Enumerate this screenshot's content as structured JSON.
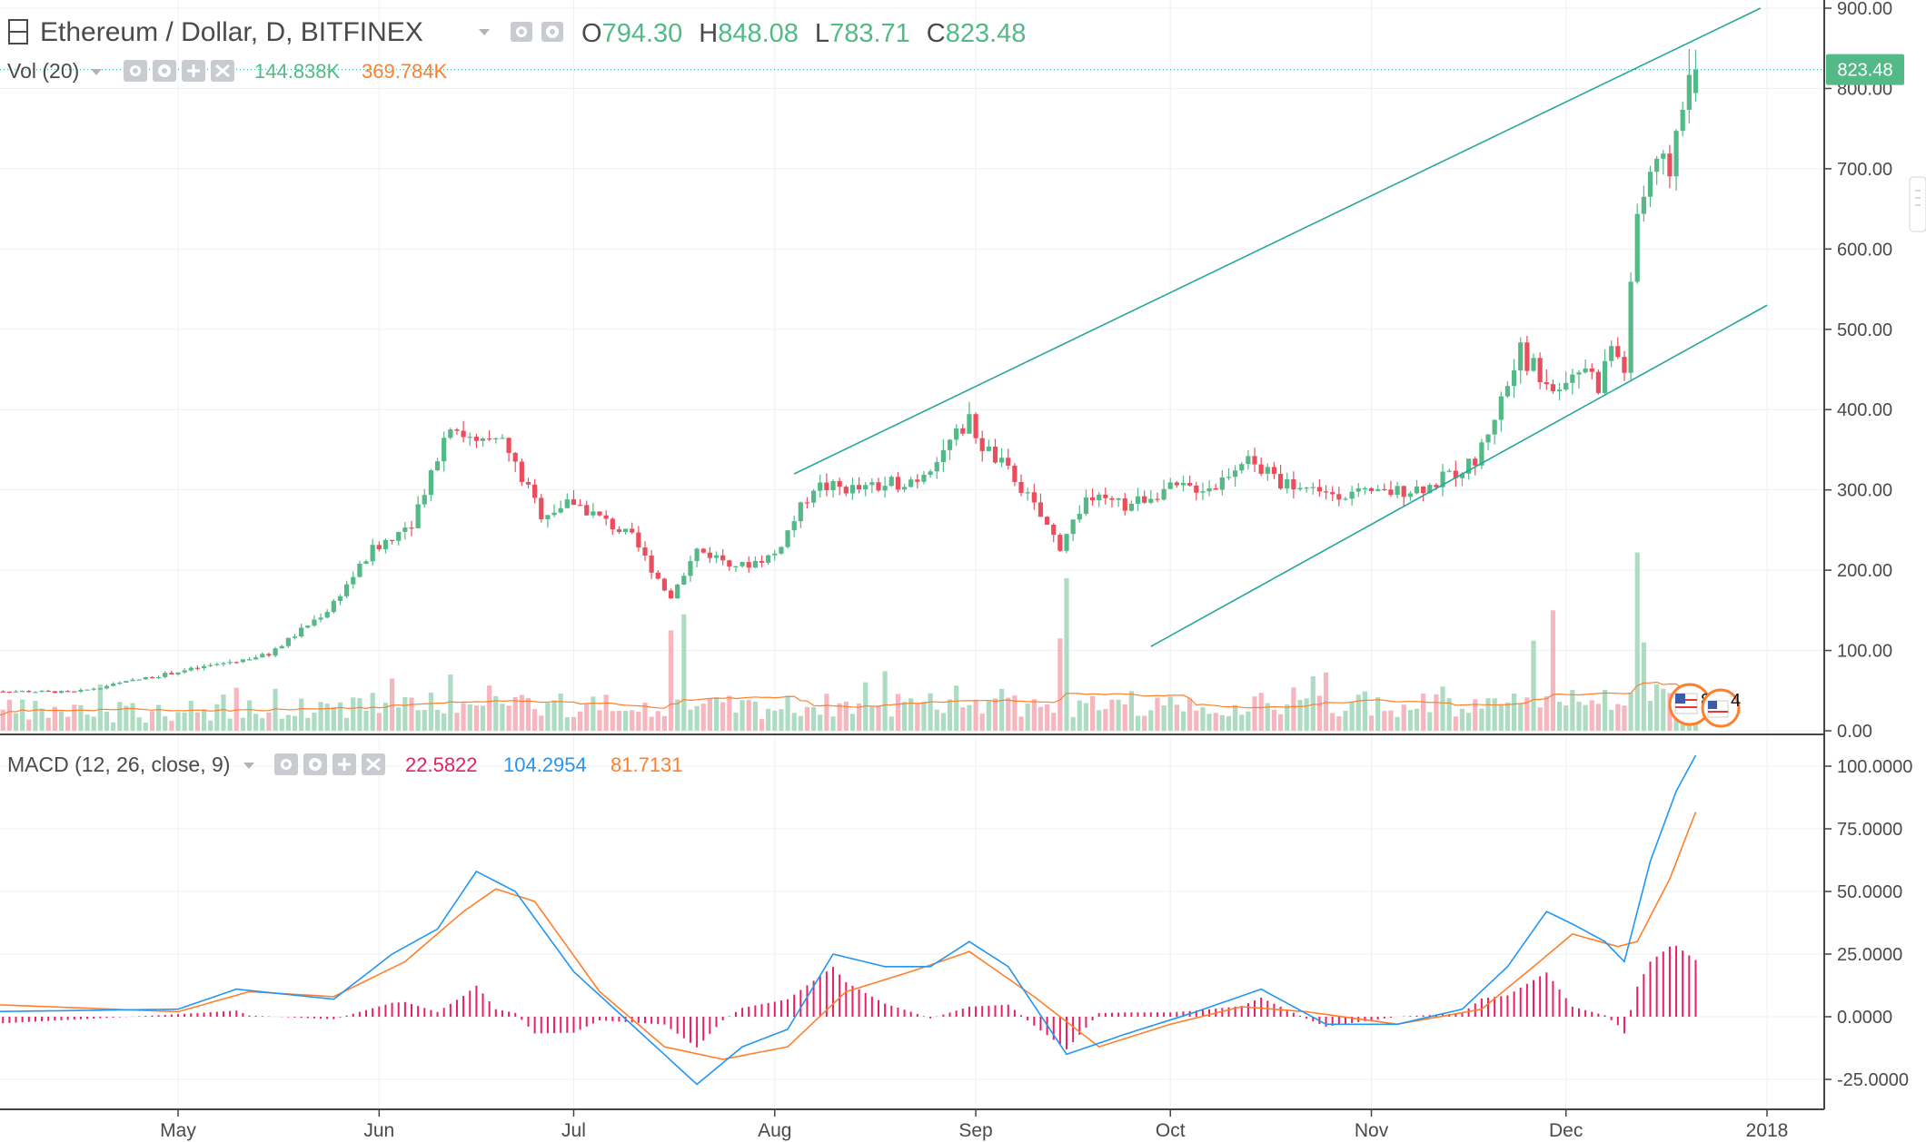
{
  "header": {
    "symbol_title": "Ethereum / Dollar, D, BITFINEX",
    "ohlc": [
      {
        "label": "O",
        "value": "794.30"
      },
      {
        "label": "H",
        "value": "848.08"
      },
      {
        "label": "L",
        "value": "783.71"
      },
      {
        "label": "C",
        "value": "823.48"
      }
    ],
    "volume_label": "Vol (20)",
    "volume_value": "144.838K",
    "volume_ma_value": "369.784K",
    "macd_label": "MACD (12, 26, close, 9)",
    "macd_hist_value": "22.5822",
    "macd_value": "104.2954",
    "macd_signal_value": "81.7131"
  },
  "price_axis": {
    "ticks": [
      "900.00",
      "800.00",
      "700.00",
      "600.00",
      "500.00",
      "400.00",
      "300.00",
      "200.00",
      "100.00",
      "0.00"
    ],
    "last_price_tag": "823.48"
  },
  "macd_axis": {
    "ticks": [
      "100.0000",
      "75.0000",
      "50.0000",
      "25.0000",
      "0.0000",
      "-25.0000"
    ]
  },
  "time_axis": {
    "labels": [
      "May",
      "Jun",
      "Jul",
      "Aug",
      "Sep",
      "Oct",
      "Nov",
      "Dec",
      "2018"
    ]
  },
  "badges": {
    "events_count": "8",
    "dividends_count": "4"
  },
  "colors": {
    "up": "#53b987",
    "down": "#eb4d5c",
    "vol_up": "#aedcc3",
    "vol_down": "#f5b6bd",
    "macd_line": "#2196f3",
    "signal_line": "#ff7f2a",
    "histogram": "#e91e63",
    "trendline": "#26a69a",
    "grid": "#eef1f3",
    "text": "#4a4a4a",
    "axis_text": "#4a4a4a"
  },
  "chart_data": {
    "type": "candlestick",
    "interval": "1D",
    "x_range": [
      "2017-04-01",
      "2017-12-31"
    ],
    "price_ylim": [
      0,
      900
    ],
    "macd_ylim": [
      -30,
      105
    ],
    "anchors": [
      {
        "date": "2017-04-01",
        "close": 50
      },
      {
        "date": "2017-04-15",
        "close": 48
      },
      {
        "date": "2017-04-30",
        "close": 72
      },
      {
        "date": "2017-05-15",
        "close": 95
      },
      {
        "date": "2017-05-24",
        "close": 150
      },
      {
        "date": "2017-05-31",
        "close": 225
      },
      {
        "date": "2017-06-06",
        "close": 260
      },
      {
        "date": "2017-06-12",
        "close": 385
      },
      {
        "date": "2017-06-16",
        "close": 355
      },
      {
        "date": "2017-06-20",
        "close": 360
      },
      {
        "date": "2017-06-26",
        "close": 270
      },
      {
        "date": "2017-07-01",
        "close": 285
      },
      {
        "date": "2017-07-10",
        "close": 240
      },
      {
        "date": "2017-07-16",
        "close": 165
      },
      {
        "date": "2017-07-20",
        "close": 225
      },
      {
        "date": "2017-07-27",
        "close": 205
      },
      {
        "date": "2017-08-01",
        "close": 220
      },
      {
        "date": "2017-08-07",
        "close": 305
      },
      {
        "date": "2017-08-15",
        "close": 300
      },
      {
        "date": "2017-08-23",
        "close": 315
      },
      {
        "date": "2017-08-31",
        "close": 385
      },
      {
        "date": "2017-09-02",
        "close": 355
      },
      {
        "date": "2017-09-07",
        "close": 315
      },
      {
        "date": "2017-09-14",
        "close": 230
      },
      {
        "date": "2017-09-18",
        "close": 290
      },
      {
        "date": "2017-09-24",
        "close": 280
      },
      {
        "date": "2017-09-30",
        "close": 300
      },
      {
        "date": "2017-10-08",
        "close": 305
      },
      {
        "date": "2017-10-12",
        "close": 340
      },
      {
        "date": "2017-10-18",
        "close": 310
      },
      {
        "date": "2017-10-25",
        "close": 298
      },
      {
        "date": "2017-11-01",
        "close": 293
      },
      {
        "date": "2017-11-10",
        "close": 305
      },
      {
        "date": "2017-11-17",
        "close": 335
      },
      {
        "date": "2017-11-24",
        "close": 470
      },
      {
        "date": "2017-11-29",
        "close": 430
      },
      {
        "date": "2017-12-04",
        "close": 455
      },
      {
        "date": "2017-12-06",
        "close": 430
      },
      {
        "date": "2017-12-08",
        "close": 480
      },
      {
        "date": "2017-12-10",
        "close": 450
      },
      {
        "date": "2017-12-12",
        "close": 640
      },
      {
        "date": "2017-12-14",
        "close": 695
      },
      {
        "date": "2017-12-17",
        "close": 700
      },
      {
        "date": "2017-12-19",
        "close": 790
      },
      {
        "date": "2017-12-21",
        "close": 823.48
      }
    ],
    "volume_spikes": [
      {
        "date": "2017-06-03",
        "value": 65
      },
      {
        "date": "2017-06-12",
        "value": 70
      },
      {
        "date": "2017-07-16",
        "value": 125
      },
      {
        "date": "2017-07-18",
        "value": 145
      },
      {
        "date": "2017-09-14",
        "value": 115
      },
      {
        "date": "2017-09-15",
        "value": 190
      },
      {
        "date": "2017-11-26",
        "value": 112
      },
      {
        "date": "2017-11-29",
        "value": 150
      },
      {
        "date": "2017-12-12",
        "value": 222
      },
      {
        "date": "2017-12-13",
        "value": 110
      }
    ],
    "macd": {
      "series": [
        {
          "name": "MACD",
          "points": [
            {
              "date": "2017-04-01",
              "value": 2
            },
            {
              "date": "2017-05-01",
              "value": 3
            },
            {
              "date": "2017-05-10",
              "value": 11
            },
            {
              "date": "2017-05-25",
              "value": 7
            },
            {
              "date": "2017-06-03",
              "value": 25
            },
            {
              "date": "2017-06-10",
              "value": 35
            },
            {
              "date": "2017-06-16",
              "value": 58
            },
            {
              "date": "2017-06-22",
              "value": 50
            },
            {
              "date": "2017-07-01",
              "value": 18
            },
            {
              "date": "2017-07-12",
              "value": -8
            },
            {
              "date": "2017-07-20",
              "value": -27
            },
            {
              "date": "2017-07-27",
              "value": -12
            },
            {
              "date": "2017-08-03",
              "value": -5
            },
            {
              "date": "2017-08-10",
              "value": 25
            },
            {
              "date": "2017-08-18",
              "value": 20
            },
            {
              "date": "2017-08-25",
              "value": 20
            },
            {
              "date": "2017-08-31",
              "value": 30
            },
            {
              "date": "2017-09-06",
              "value": 20
            },
            {
              "date": "2017-09-15",
              "value": -15
            },
            {
              "date": "2017-09-24",
              "value": -7
            },
            {
              "date": "2017-10-05",
              "value": 2
            },
            {
              "date": "2017-10-15",
              "value": 11
            },
            {
              "date": "2017-10-25",
              "value": -3
            },
            {
              "date": "2017-11-05",
              "value": -3
            },
            {
              "date": "2017-11-15",
              "value": 3
            },
            {
              "date": "2017-11-22",
              "value": 20
            },
            {
              "date": "2017-11-28",
              "value": 42
            },
            {
              "date": "2017-12-02",
              "value": 37
            },
            {
              "date": "2017-12-07",
              "value": 30
            },
            {
              "date": "2017-12-10",
              "value": 22
            },
            {
              "date": "2017-12-14",
              "value": 62
            },
            {
              "date": "2017-12-18",
              "value": 90
            },
            {
              "date": "2017-12-21",
              "value": 104.2954
            }
          ]
        },
        {
          "name": "Signal",
          "points": [
            {
              "date": "2017-04-01",
              "value": 5
            },
            {
              "date": "2017-05-01",
              "value": 2
            },
            {
              "date": "2017-05-12",
              "value": 10
            },
            {
              "date": "2017-05-25",
              "value": 8
            },
            {
              "date": "2017-06-05",
              "value": 22
            },
            {
              "date": "2017-06-14",
              "value": 42
            },
            {
              "date": "2017-06-19",
              "value": 51
            },
            {
              "date": "2017-06-25",
              "value": 46
            },
            {
              "date": "2017-07-05",
              "value": 10
            },
            {
              "date": "2017-07-15",
              "value": -12
            },
            {
              "date": "2017-07-24",
              "value": -17
            },
            {
              "date": "2017-08-03",
              "value": -12
            },
            {
              "date": "2017-08-12",
              "value": 10
            },
            {
              "date": "2017-08-22",
              "value": 18
            },
            {
              "date": "2017-08-31",
              "value": 26
            },
            {
              "date": "2017-09-10",
              "value": 8
            },
            {
              "date": "2017-09-20",
              "value": -12
            },
            {
              "date": "2017-10-01",
              "value": -3
            },
            {
              "date": "2017-10-12",
              "value": 4
            },
            {
              "date": "2017-10-22",
              "value": 2
            },
            {
              "date": "2017-11-05",
              "value": -3
            },
            {
              "date": "2017-11-18",
              "value": 3
            },
            {
              "date": "2017-11-26",
              "value": 20
            },
            {
              "date": "2017-12-02",
              "value": 33
            },
            {
              "date": "2017-12-09",
              "value": 28
            },
            {
              "date": "2017-12-12",
              "value": 30
            },
            {
              "date": "2017-12-17",
              "value": 55
            },
            {
              "date": "2017-12-21",
              "value": 81.7131
            }
          ]
        }
      ]
    },
    "trendlines": [
      {
        "name": "upper",
        "from": {
          "date": "2017-08-04",
          "price": 320
        },
        "to": {
          "date": "2017-12-31",
          "price": 900
        }
      },
      {
        "name": "lower",
        "from": {
          "date": "2017-09-28",
          "price": 105
        },
        "to": {
          "date": "2018-01-01",
          "price": 530
        }
      }
    ]
  }
}
